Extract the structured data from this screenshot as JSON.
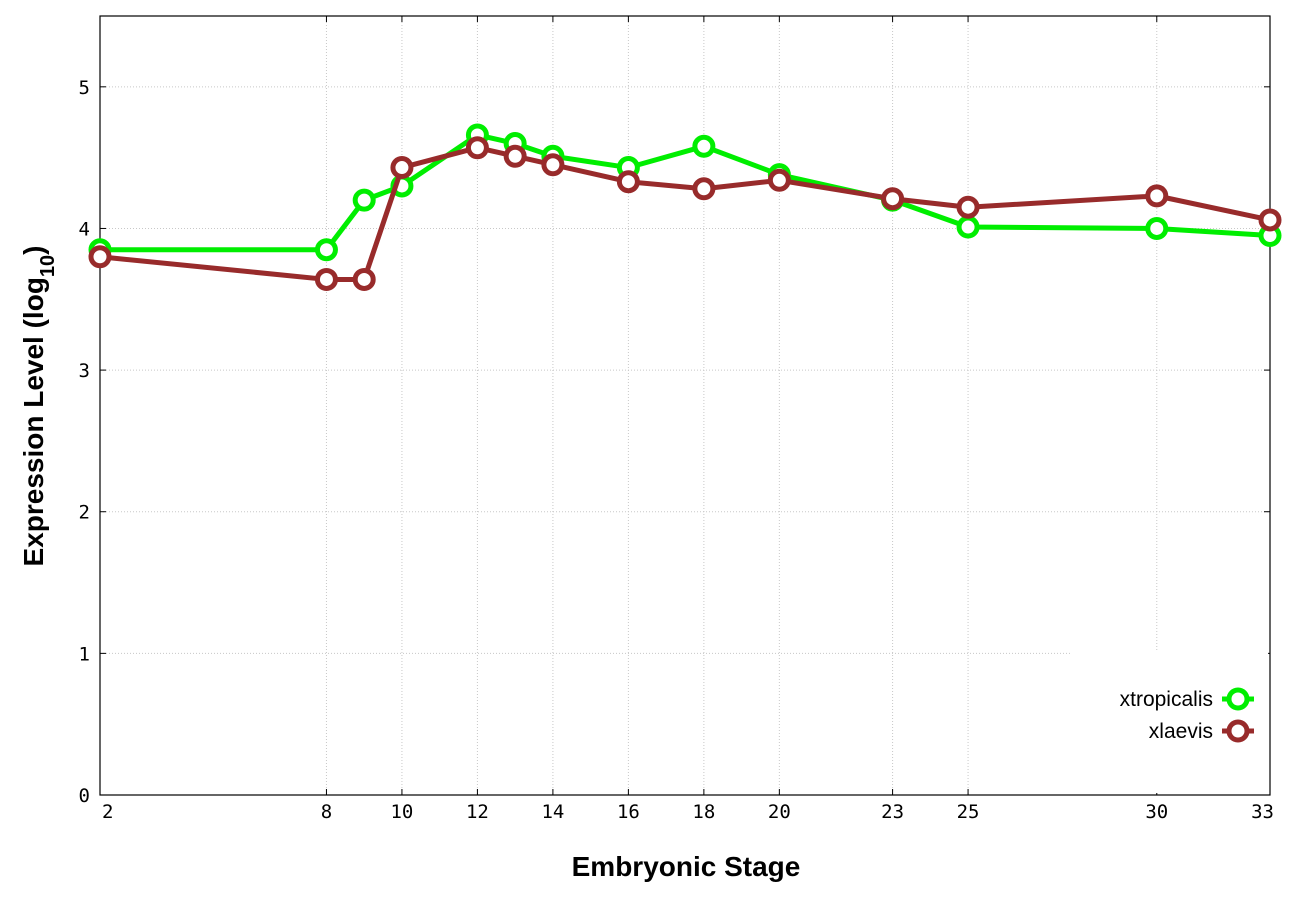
{
  "chart_data": {
    "type": "line",
    "xlabel": "Embryonic Stage",
    "ylabel_main": "Expression Level (log",
    "ylabel_sub": "10",
    "ylabel_close": ")",
    "xlim": [
      2,
      33
    ],
    "ylim": [
      0,
      5.5
    ],
    "x_ticks": [
      2,
      8,
      10,
      12,
      14,
      16,
      18,
      20,
      23,
      25,
      30,
      33
    ],
    "y_ticks": [
      0,
      1,
      2,
      3,
      4,
      5
    ],
    "grid": true,
    "legend_position": "bottom-right",
    "series": [
      {
        "name": "xtropicalis",
        "color": "#00ee00",
        "x": [
          2,
          8,
          9,
          10,
          12,
          13,
          14,
          16,
          18,
          20,
          23,
          25,
          30,
          33
        ],
        "y": [
          3.85,
          3.85,
          4.2,
          4.3,
          4.66,
          4.6,
          4.51,
          4.43,
          4.58,
          4.38,
          4.2,
          4.01,
          4.0,
          3.95
        ]
      },
      {
        "name": "xlaevis",
        "color": "#982b2b",
        "x": [
          2,
          8,
          9,
          10,
          12,
          13,
          14,
          16,
          18,
          20,
          23,
          25,
          30,
          33
        ],
        "y": [
          3.8,
          3.64,
          3.64,
          4.43,
          4.57,
          4.51,
          4.45,
          4.33,
          4.28,
          4.34,
          4.21,
          4.15,
          4.23,
          4.06
        ]
      }
    ]
  }
}
